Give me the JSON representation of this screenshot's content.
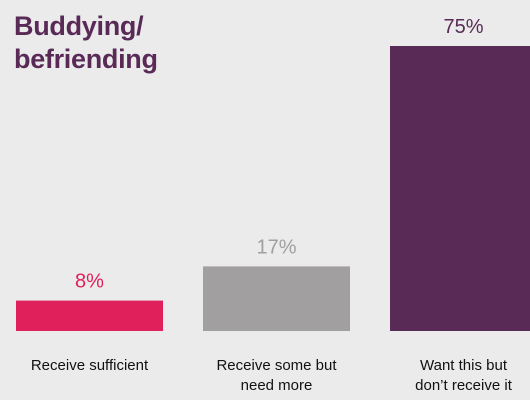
{
  "title_lines": [
    "Buddying/",
    "befriending"
  ],
  "colors": {
    "background": "#ebebeb",
    "title": "#5a2a57",
    "category_text": "#111111"
  },
  "chart_data": {
    "type": "bar",
    "title": "Buddying/ befriending",
    "categories": [
      [
        "Receive sufficient"
      ],
      [
        "Receive some but",
        "need more"
      ],
      [
        "Want this but",
        "don’t receive it"
      ]
    ],
    "values": [
      8,
      17,
      75
    ],
    "value_labels": [
      "8%",
      "17%",
      "75%"
    ],
    "bar_colors": [
      "#e0205a",
      "#a19fa0",
      "#5a2a57"
    ],
    "label_colors": [
      "#e0205a",
      "#a19fa0",
      "#5a2a57"
    ],
    "ylim": [
      0,
      75
    ],
    "grid": false,
    "legend": "none"
  }
}
